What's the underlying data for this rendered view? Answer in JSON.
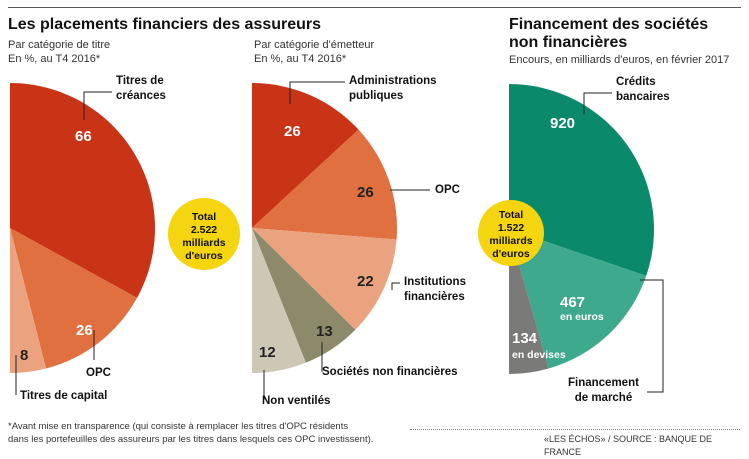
{
  "charts": {
    "left": {
      "title": "Les placements financiers des assureurs",
      "subtitle1": "Par catégorie de titre",
      "subtitle2": "En %, au T4 2016*"
    },
    "middle": {
      "subtitle1": "Par catégorie d'émetteur",
      "subtitle2": "En %, au T4 2016*"
    },
    "right": {
      "title1": "Financement des sociétés",
      "title2": "non financières",
      "subtitle1": "Encours, en milliards d'euros, en février 2017"
    }
  },
  "badges": {
    "left": {
      "line1": "Total",
      "line2": "2.522",
      "line3": "milliards",
      "line4": "d'euros"
    },
    "right": {
      "line1": "Total",
      "line2": "1.522",
      "line3": "milliards",
      "line4": "d'euros"
    }
  },
  "chart_data": [
    {
      "type": "pie",
      "title": "Les placements financiers des assureurs — Par catégorie de titre",
      "unit": "En %, au T4 2016*",
      "slices": [
        {
          "label": "Titres de créances",
          "label_line1": "Titres de",
          "label_line2": "créances",
          "value": 66,
          "color": "#c93417"
        },
        {
          "label": "OPC",
          "value": 26,
          "color": "#e07040"
        },
        {
          "label": "Titres de capital",
          "value": 8,
          "color": "#eba27f"
        }
      ]
    },
    {
      "type": "pie",
      "title": "Par catégorie d'émetteur",
      "unit": "En %, au T4 2016*",
      "slices": [
        {
          "label": "Administrations publiques",
          "label_line1": "Administrations",
          "label_line2": "publiques",
          "value": 26,
          "color": "#c93417"
        },
        {
          "label": "OPC",
          "value": 26,
          "color": "#e07040"
        },
        {
          "label": "Institutions financières",
          "label_line1": "Institutions",
          "label_line2": "financières",
          "value": 22,
          "color": "#eba27f"
        },
        {
          "label": "Sociétés non financières",
          "value": 13,
          "color": "#8c8a6a"
        },
        {
          "label": "Non ventilés",
          "value": 12,
          "color": "#cdc7b5"
        }
      ]
    },
    {
      "type": "pie",
      "title": "Financement des sociétés non financières",
      "unit": "Encours, en milliards d'euros, en février 2017",
      "slices": [
        {
          "label": "Crédits bancaires",
          "label_line1": "Crédits",
          "label_line2": "bancaires",
          "value": 920,
          "color": "#0a8a6a"
        },
        {
          "label": "en euros",
          "value": 467,
          "color": "#3ea98c"
        },
        {
          "label": "en devises",
          "value": 134,
          "color": "#7a7a78"
        }
      ],
      "group_label": {
        "line1": "Financement",
        "line2": "de marché"
      }
    }
  ],
  "footer": {
    "note1": "*Avant mise en transparence (qui consiste à remplacer les titres d'OPC résidents",
    "note2": "dans les portefeuilles des assureurs par les titres dans lesquels ces OPC investissent).",
    "source": "«LES ÉCHOS» / SOURCE : BANQUE DE FRANCE"
  }
}
